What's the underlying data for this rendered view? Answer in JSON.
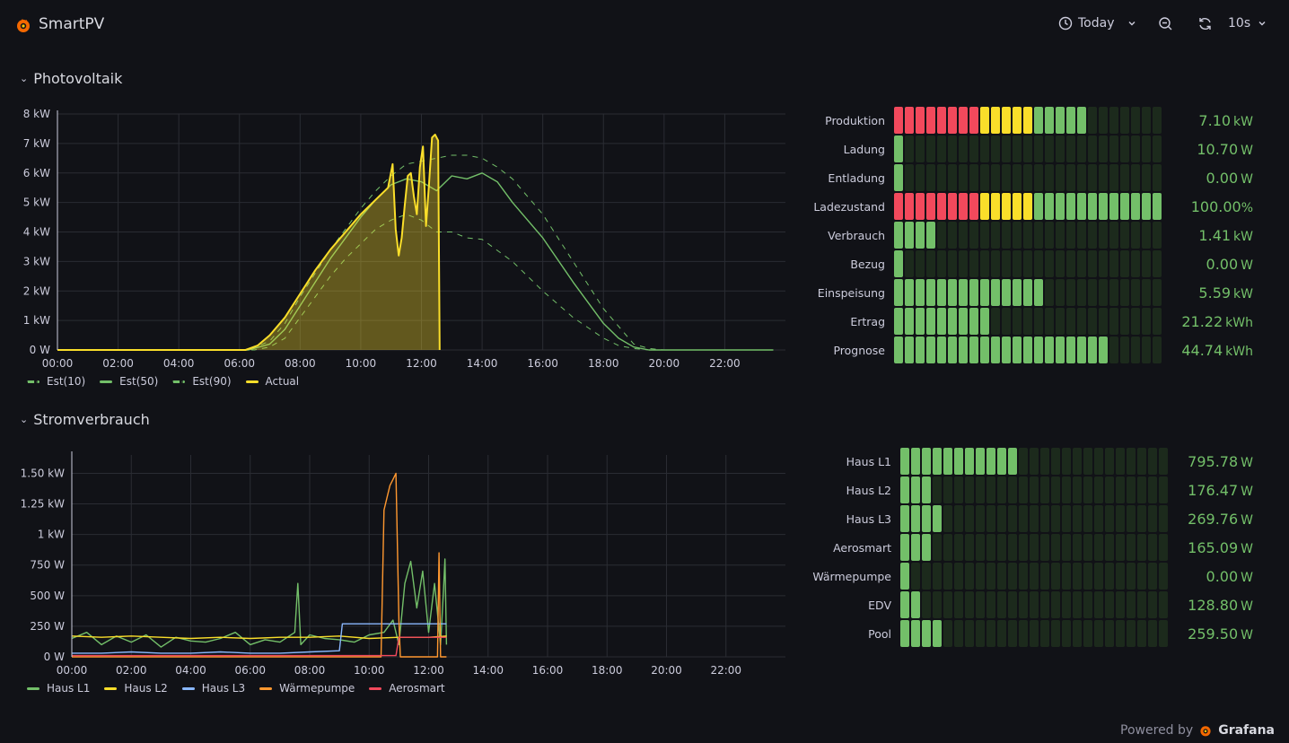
{
  "app": {
    "title": "SmartPV"
  },
  "toolbar": {
    "time_range": "Today",
    "refresh_interval": "10s"
  },
  "rows": [
    {
      "title": "Photovoltaik"
    },
    {
      "title": "Stromverbrauch"
    }
  ],
  "footer": {
    "powered_by": "Powered by",
    "brand": "Grafana"
  },
  "colors": {
    "green": "#73bf69",
    "yellow": "#fade2a",
    "red": "#f2495c",
    "blue": "#8ab8ff",
    "orange": "#ff9830",
    "bar_dim": "#1c2a1c"
  },
  "chart_data": [
    {
      "type": "line",
      "xlabel": "",
      "ylabel": "",
      "xlim": [
        "00:00",
        "24:00"
      ],
      "ylim": [
        0,
        8
      ],
      "y_ticks": [
        "0 W",
        "1 kW",
        "2 kW",
        "3 kW",
        "4 kW",
        "5 kW",
        "6 kW",
        "7 kW",
        "8 kW"
      ],
      "x_ticks": [
        "00:00",
        "02:00",
        "04:00",
        "06:00",
        "08:00",
        "10:00",
        "12:00",
        "14:00",
        "16:00",
        "18:00",
        "20:00",
        "22:00"
      ],
      "grid": true,
      "legend": "bottom-left",
      "series": [
        {
          "name": "Est(10)",
          "style": "dashed",
          "color": "#73bf69",
          "x": [
            0,
            6.5,
            7,
            7.5,
            8,
            8.5,
            9,
            9.5,
            10,
            10.5,
            11,
            11.5,
            12,
            12.5,
            13,
            13.5,
            14,
            15,
            16,
            17,
            18,
            18.5,
            19,
            19.5,
            20,
            23.6
          ],
          "y": [
            0,
            0,
            0.1,
            0.4,
            1.1,
            1.8,
            2.5,
            3.1,
            3.6,
            4.1,
            4.4,
            4.6,
            4.4,
            4.0,
            4.0,
            3.8,
            3.75,
            3.0,
            2.0,
            1.1,
            0.4,
            0.15,
            0.05,
            0,
            0,
            0
          ]
        },
        {
          "name": "Est(50)",
          "style": "solid",
          "color": "#73bf69",
          "x": [
            0,
            6.3,
            7,
            7.5,
            8,
            8.5,
            9,
            9.5,
            10,
            10.5,
            11,
            11.5,
            12,
            12.5,
            13,
            13.5,
            14,
            14.5,
            15,
            16,
            17,
            18,
            18.5,
            19,
            19.5,
            20,
            23.6
          ],
          "y": [
            0,
            0,
            0.2,
            0.7,
            1.5,
            2.3,
            3.1,
            3.8,
            4.5,
            5.1,
            5.6,
            5.8,
            5.7,
            5.4,
            5.9,
            5.8,
            6.0,
            5.7,
            5.0,
            3.8,
            2.3,
            0.9,
            0.4,
            0.1,
            0,
            0,
            0
          ]
        },
        {
          "name": "Est(90)",
          "style": "dashed",
          "color": "#73bf69",
          "x": [
            0,
            6.3,
            7,
            7.5,
            8,
            8.5,
            9,
            9.5,
            10,
            10.5,
            11,
            11.5,
            12,
            12.5,
            13,
            13.5,
            14,
            14.5,
            15,
            16,
            17,
            18,
            19,
            19.5,
            20,
            23.6
          ],
          "y": [
            0,
            0,
            0.3,
            0.9,
            1.8,
            2.6,
            3.4,
            4.1,
            4.8,
            5.4,
            5.9,
            6.3,
            6.4,
            6.5,
            6.6,
            6.6,
            6.5,
            6.2,
            5.8,
            4.6,
            3.0,
            1.4,
            0.2,
            0.05,
            0,
            0
          ]
        },
        {
          "name": "Actual",
          "style": "solid-filled",
          "color": "#fade2a",
          "x": [
            0,
            6.2,
            6.6,
            7,
            7.5,
            8,
            8.5,
            9,
            9.5,
            10,
            10.5,
            10.9,
            11.05,
            11.15,
            11.25,
            11.35,
            11.45,
            11.55,
            11.65,
            11.75,
            11.85,
            11.95,
            12.05,
            12.15,
            12.25,
            12.35,
            12.45,
            12.5,
            12.55,
            12.6
          ],
          "y": [
            0,
            0,
            0.15,
            0.5,
            1.1,
            1.9,
            2.7,
            3.4,
            4.0,
            4.6,
            5.1,
            5.5,
            6.3,
            4.1,
            3.2,
            3.8,
            4.9,
            5.9,
            6.0,
            5.2,
            4.6,
            6.2,
            6.9,
            4.2,
            5.6,
            7.2,
            7.3,
            7.2,
            7.1,
            0
          ]
        }
      ]
    },
    {
      "type": "line",
      "xlabel": "",
      "ylabel": "",
      "xlim": [
        "00:00",
        "24:00"
      ],
      "ylim": [
        0,
        1.65
      ],
      "y_ticks": [
        "0 W",
        "250 W",
        "500 W",
        "750 W",
        "1 kW",
        "1.25 kW",
        "1.50 kW"
      ],
      "x_ticks": [
        "00:00",
        "02:00",
        "04:00",
        "06:00",
        "08:00",
        "10:00",
        "12:00",
        "14:00",
        "16:00",
        "18:00",
        "20:00",
        "22:00"
      ],
      "grid": true,
      "legend": "bottom-left",
      "series": [
        {
          "name": "Haus L1",
          "color": "#73bf69",
          "x": [
            0,
            0.5,
            1,
            1.5,
            2,
            2.5,
            3,
            3.5,
            4,
            4.5,
            5,
            5.5,
            6,
            6.5,
            7,
            7.5,
            7.6,
            7.7,
            8,
            8.5,
            9,
            9.5,
            10,
            10.5,
            10.8,
            11,
            11.2,
            11.4,
            11.6,
            11.8,
            12,
            12.2,
            12.4,
            12.5,
            12.55,
            12.6
          ],
          "y": [
            0.15,
            0.2,
            0.1,
            0.17,
            0.12,
            0.18,
            0.08,
            0.16,
            0.13,
            0.12,
            0.15,
            0.2,
            0.1,
            0.14,
            0.12,
            0.2,
            0.6,
            0.1,
            0.18,
            0.15,
            0.14,
            0.12,
            0.18,
            0.2,
            0.3,
            0.1,
            0.6,
            0.78,
            0.4,
            0.7,
            0.2,
            0.6,
            0.1,
            0.55,
            0.8,
            0.1
          ]
        },
        {
          "name": "Haus L2",
          "color": "#fade2a",
          "x": [
            0,
            1,
            2,
            3,
            4,
            5,
            6,
            7,
            8,
            9,
            10,
            11,
            12,
            12.6
          ],
          "y": [
            0.17,
            0.16,
            0.17,
            0.16,
            0.15,
            0.16,
            0.15,
            0.16,
            0.16,
            0.17,
            0.15,
            0.16,
            0.16,
            0.17
          ]
        },
        {
          "name": "Haus L3",
          "color": "#8ab8ff",
          "x": [
            0,
            1,
            2,
            3,
            4,
            5,
            6,
            7,
            8,
            9,
            9.1,
            10,
            11,
            12,
            12.6
          ],
          "y": [
            0.03,
            0.03,
            0.04,
            0.03,
            0.03,
            0.04,
            0.03,
            0.03,
            0.04,
            0.05,
            0.27,
            0.27,
            0.27,
            0.27,
            0.27
          ]
        },
        {
          "name": "Wärmepumpe",
          "color": "#ff9830",
          "x": [
            0,
            10.4,
            10.5,
            10.6,
            10.7,
            10.8,
            10.9,
            11.0,
            11.05,
            11.1,
            12.3,
            12.35,
            12.4,
            12.6
          ],
          "y": [
            0,
            0,
            1.2,
            1.3,
            1.4,
            1.45,
            1.5,
            0.3,
            0,
            0,
            0,
            0.85,
            0,
            0
          ]
        },
        {
          "name": "Aerosmart",
          "color": "#f2495c",
          "x": [
            0,
            10.9,
            11.0,
            12.6
          ],
          "y": [
            0.01,
            0.01,
            0.16,
            0.16
          ]
        }
      ]
    }
  ],
  "gauges_pv": [
    {
      "label": "Produktion",
      "value": "7.10",
      "unit": "kW",
      "level": 0.71,
      "scheme": "ryg"
    },
    {
      "label": "Ladung",
      "value": "10.70",
      "unit": "W",
      "level": 0.01,
      "scheme": "g"
    },
    {
      "label": "Entladung",
      "value": "0.00",
      "unit": "W",
      "level": 0.0,
      "scheme": "g"
    },
    {
      "label": "Ladezustand",
      "value": "100.00",
      "unit": "%",
      "level": 1.0,
      "scheme": "ryg"
    },
    {
      "label": "Verbrauch",
      "value": "1.41",
      "unit": "kW",
      "level": 0.14,
      "scheme": "g"
    },
    {
      "label": "Bezug",
      "value": "0.00",
      "unit": "W",
      "level": 0.0,
      "scheme": "g"
    },
    {
      "label": "Einspeisung",
      "value": "5.59",
      "unit": "kW",
      "level": 0.56,
      "scheme": "g"
    },
    {
      "label": "Ertrag",
      "value": "21.22",
      "unit": "kWh",
      "level": 0.37,
      "scheme": "g"
    },
    {
      "label": "Prognose",
      "value": "44.74",
      "unit": "kWh",
      "level": 0.8,
      "scheme": "g"
    }
  ],
  "gauges_consumption": [
    {
      "label": "Haus L1",
      "value": "795.78",
      "unit": "W",
      "level": 0.43
    },
    {
      "label": "Haus L2",
      "value": "176.47",
      "unit": "W",
      "level": 0.12
    },
    {
      "label": "Haus L3",
      "value": "269.76",
      "unit": "W",
      "level": 0.16
    },
    {
      "label": "Aerosmart",
      "value": "165.09",
      "unit": "W",
      "level": 0.12
    },
    {
      "label": "Wärmepumpe",
      "value": "0.00",
      "unit": "W",
      "level": 0.0
    },
    {
      "label": "EDV",
      "value": "128.80",
      "unit": "W",
      "level": 0.08
    },
    {
      "label": "Pool",
      "value": "259.50",
      "unit": "W",
      "level": 0.16
    }
  ]
}
